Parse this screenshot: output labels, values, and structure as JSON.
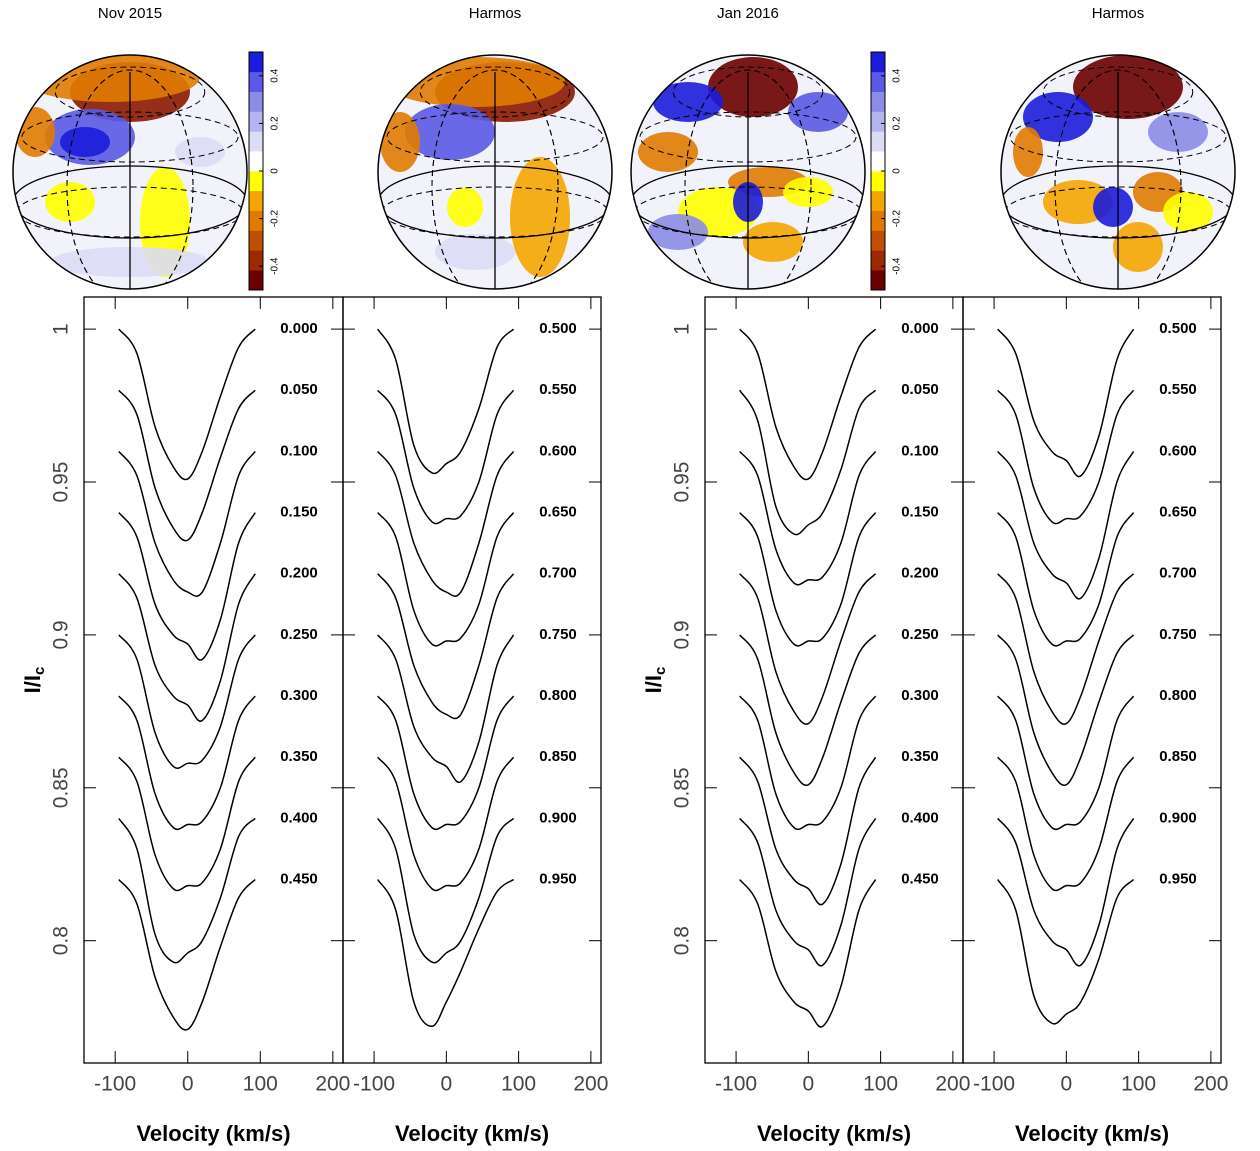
{
  "chart_data": [
    {
      "type": "line",
      "title": "Nov 2015",
      "xlabel": "Velocity (km/s)",
      "ylabel": {
        "main": "I/I",
        "sub": "c"
      },
      "xlim": [
        -143,
        214
      ],
      "xticks": [
        -100,
        0,
        100,
        200
      ],
      "ylim": [
        0.76,
        1.0105
      ],
      "yticks": [
        1,
        0.95,
        0.9,
        0.85,
        0.8
      ],
      "colorbar": {
        "lim": [
          -0.5,
          0.5
        ],
        "ticks": [
          -0.4,
          -0.2,
          0,
          0.2,
          0.4
        ],
        "colors": [
          "#6b0000",
          "#9b2a00",
          "#c05000",
          "#e07b00",
          "#f3a600",
          "#ffff00",
          "#ffffff",
          "#dcdcf5",
          "#b4b4ee",
          "#8c8ce6",
          "#5a5ae6",
          "#1c1cd9"
        ]
      },
      "x": [
        -95,
        -70,
        -45,
        -20,
        0,
        20,
        45,
        70,
        93
      ],
      "series": [
        {
          "name": "0.000",
          "color": "#000000",
          "values": [
            1,
            0.992,
            0.968,
            0.955,
            0.951,
            0.96,
            0.978,
            0.994,
            1
          ]
        },
        {
          "name": "0.050",
          "color": "#000000",
          "values": [
            0.98,
            0.972,
            0.948,
            0.935,
            0.931,
            0.94,
            0.958,
            0.974,
            0.98
          ]
        },
        {
          "name": "0.100",
          "color": "#000000",
          "values": [
            0.96,
            0.952,
            0.93,
            0.918,
            0.914,
            0.914,
            0.93,
            0.952,
            0.96
          ]
        },
        {
          "name": "0.150",
          "color": "#000000",
          "values": [
            0.94,
            0.932,
            0.91,
            0.9,
            0.897,
            0.892,
            0.905,
            0.93,
            0.94
          ]
        },
        {
          "name": "0.200",
          "color": "#000000",
          "values": [
            0.92,
            0.912,
            0.89,
            0.88,
            0.877,
            0.872,
            0.885,
            0.91,
            0.92
          ]
        },
        {
          "name": "0.250",
          "color": "#000000",
          "values": [
            0.9,
            0.892,
            0.868,
            0.857,
            0.858,
            0.859,
            0.87,
            0.892,
            0.9
          ]
        },
        {
          "name": "0.300",
          "color": "#000000",
          "values": [
            0.88,
            0.872,
            0.848,
            0.837,
            0.838,
            0.839,
            0.85,
            0.872,
            0.88
          ]
        },
        {
          "name": "0.350",
          "color": "#000000",
          "values": [
            0.86,
            0.852,
            0.828,
            0.817,
            0.818,
            0.819,
            0.83,
            0.852,
            0.86
          ]
        },
        {
          "name": "0.400",
          "color": "#000000",
          "values": [
            0.84,
            0.83,
            0.802,
            0.793,
            0.796,
            0.8,
            0.814,
            0.834,
            0.84
          ]
        },
        {
          "name": "0.450",
          "color": "#000000",
          "values": [
            0.82,
            0.812,
            0.788,
            0.775,
            0.771,
            0.78,
            0.798,
            0.814,
            0.82
          ]
        }
      ]
    },
    {
      "type": "line",
      "title": "Harmos",
      "xlabel": "Velocity (km/s)",
      "xlim": [
        -143,
        214
      ],
      "xticks": [
        -100,
        0,
        100,
        200
      ],
      "ylim": [
        0.76,
        1.0105
      ],
      "x": [
        -95,
        -70,
        -45,
        -20,
        0,
        20,
        45,
        70,
        93
      ],
      "series": [
        {
          "name": "0.500",
          "color": "#000000",
          "values": [
            1,
            0.99,
            0.962,
            0.953,
            0.956,
            0.96,
            0.974,
            0.994,
            1
          ]
        },
        {
          "name": "0.550",
          "color": "#000000",
          "values": [
            0.98,
            0.972,
            0.948,
            0.937,
            0.938,
            0.939,
            0.95,
            0.972,
            0.98
          ]
        },
        {
          "name": "0.600",
          "color": "#000000",
          "values": [
            0.96,
            0.952,
            0.93,
            0.918,
            0.914,
            0.914,
            0.93,
            0.952,
            0.96
          ]
        },
        {
          "name": "0.650",
          "color": "#000000",
          "values": [
            0.94,
            0.932,
            0.908,
            0.897,
            0.898,
            0.899,
            0.91,
            0.932,
            0.94
          ]
        },
        {
          "name": "0.700",
          "color": "#000000",
          "values": [
            0.92,
            0.912,
            0.89,
            0.878,
            0.874,
            0.874,
            0.89,
            0.912,
            0.92
          ]
        },
        {
          "name": "0.750",
          "color": "#000000",
          "values": [
            0.9,
            0.892,
            0.87,
            0.86,
            0.857,
            0.852,
            0.865,
            0.89,
            0.9
          ]
        },
        {
          "name": "0.800",
          "color": "#000000",
          "values": [
            0.88,
            0.872,
            0.848,
            0.837,
            0.838,
            0.839,
            0.85,
            0.872,
            0.88
          ]
        },
        {
          "name": "0.850",
          "color": "#000000",
          "values": [
            0.86,
            0.852,
            0.828,
            0.817,
            0.818,
            0.819,
            0.83,
            0.852,
            0.86
          ]
        },
        {
          "name": "0.900",
          "color": "#000000",
          "values": [
            0.84,
            0.83,
            0.802,
            0.793,
            0.796,
            0.8,
            0.814,
            0.834,
            0.84
          ]
        },
        {
          "name": "0.950",
          "color": "#000000",
          "values": [
            0.82,
            0.81,
            0.78,
            0.772,
            0.78,
            0.79,
            0.804,
            0.816,
            0.82
          ]
        }
      ]
    },
    {
      "type": "line",
      "title": "Jan 2016",
      "xlabel": "Velocity (km/s)",
      "ylabel": {
        "main": "I/I",
        "sub": "c"
      },
      "xlim": [
        -143,
        214
      ],
      "xticks": [
        -100,
        0,
        100,
        200
      ],
      "ylim": [
        0.76,
        1.0105
      ],
      "yticks": [
        1,
        0.95,
        0.9,
        0.85,
        0.8
      ],
      "colorbar": {
        "lim": [
          -0.5,
          0.5
        ],
        "ticks": [
          -0.4,
          -0.2,
          0,
          0.2,
          0.4
        ],
        "colors": [
          "#6b0000",
          "#9b2a00",
          "#c05000",
          "#e07b00",
          "#f3a600",
          "#ffff00",
          "#ffffff",
          "#dcdcf5",
          "#b4b4ee",
          "#8c8ce6",
          "#5a5ae6",
          "#1c1cd9"
        ]
      },
      "x": [
        -95,
        -70,
        -45,
        -20,
        0,
        20,
        45,
        70,
        93
      ],
      "series": [
        {
          "name": "0.000",
          "color": "#000000",
          "values": [
            1,
            0.992,
            0.968,
            0.955,
            0.951,
            0.96,
            0.978,
            0.994,
            1
          ]
        },
        {
          "name": "0.050",
          "color": "#000000",
          "values": [
            0.98,
            0.97,
            0.942,
            0.933,
            0.936,
            0.94,
            0.954,
            0.974,
            0.98
          ]
        },
        {
          "name": "0.100",
          "color": "#000000",
          "values": [
            0.96,
            0.952,
            0.928,
            0.917,
            0.918,
            0.919,
            0.93,
            0.952,
            0.96
          ]
        },
        {
          "name": "0.150",
          "color": "#000000",
          "values": [
            0.94,
            0.932,
            0.908,
            0.897,
            0.898,
            0.899,
            0.91,
            0.932,
            0.94
          ]
        },
        {
          "name": "0.200",
          "color": "#000000",
          "values": [
            0.92,
            0.912,
            0.888,
            0.875,
            0.871,
            0.88,
            0.898,
            0.914,
            0.92
          ]
        },
        {
          "name": "0.250",
          "color": "#000000",
          "values": [
            0.9,
            0.892,
            0.868,
            0.855,
            0.851,
            0.86,
            0.878,
            0.894,
            0.9
          ]
        },
        {
          "name": "0.300",
          "color": "#000000",
          "values": [
            0.88,
            0.872,
            0.848,
            0.837,
            0.838,
            0.839,
            0.85,
            0.872,
            0.88
          ]
        },
        {
          "name": "0.350",
          "color": "#000000",
          "values": [
            0.86,
            0.852,
            0.83,
            0.82,
            0.817,
            0.812,
            0.825,
            0.85,
            0.86
          ]
        },
        {
          "name": "0.400",
          "color": "#000000",
          "values": [
            0.84,
            0.832,
            0.81,
            0.8,
            0.797,
            0.792,
            0.805,
            0.83,
            0.84
          ]
        },
        {
          "name": "0.450",
          "color": "#000000",
          "values": [
            0.82,
            0.812,
            0.79,
            0.78,
            0.777,
            0.772,
            0.785,
            0.81,
            0.82
          ]
        }
      ]
    },
    {
      "type": "line",
      "title": "Harmos",
      "xlabel": "Velocity (km/s)",
      "xlim": [
        -143,
        214
      ],
      "xticks": [
        -100,
        0,
        100,
        200
      ],
      "ylim": [
        0.76,
        1.0105
      ],
      "x": [
        -95,
        -70,
        -45,
        -20,
        0,
        20,
        45,
        70,
        93
      ],
      "series": [
        {
          "name": "0.500",
          "color": "#000000",
          "values": [
            1,
            0.992,
            0.97,
            0.96,
            0.957,
            0.952,
            0.965,
            0.99,
            1
          ]
        },
        {
          "name": "0.550",
          "color": "#000000",
          "values": [
            0.98,
            0.972,
            0.948,
            0.937,
            0.938,
            0.939,
            0.95,
            0.972,
            0.98
          ]
        },
        {
          "name": "0.600",
          "color": "#000000",
          "values": [
            0.96,
            0.952,
            0.93,
            0.92,
            0.917,
            0.912,
            0.925,
            0.95,
            0.96
          ]
        },
        {
          "name": "0.650",
          "color": "#000000",
          "values": [
            0.94,
            0.932,
            0.908,
            0.897,
            0.898,
            0.899,
            0.91,
            0.932,
            0.94
          ]
        },
        {
          "name": "0.700",
          "color": "#000000",
          "values": [
            0.92,
            0.912,
            0.888,
            0.875,
            0.871,
            0.88,
            0.898,
            0.914,
            0.92
          ]
        },
        {
          "name": "0.750",
          "color": "#000000",
          "values": [
            0.9,
            0.892,
            0.868,
            0.855,
            0.851,
            0.86,
            0.878,
            0.894,
            0.9
          ]
        },
        {
          "name": "0.800",
          "color": "#000000",
          "values": [
            0.88,
            0.872,
            0.848,
            0.837,
            0.838,
            0.839,
            0.85,
            0.872,
            0.88
          ]
        },
        {
          "name": "0.850",
          "color": "#000000",
          "values": [
            0.86,
            0.852,
            0.828,
            0.817,
            0.818,
            0.819,
            0.83,
            0.852,
            0.86
          ]
        },
        {
          "name": "0.900",
          "color": "#000000",
          "values": [
            0.84,
            0.832,
            0.81,
            0.8,
            0.797,
            0.792,
            0.805,
            0.83,
            0.84
          ]
        },
        {
          "name": "0.950",
          "color": "#000000",
          "values": [
            0.82,
            0.81,
            0.782,
            0.773,
            0.776,
            0.78,
            0.794,
            0.814,
            0.82
          ]
        }
      ]
    }
  ]
}
